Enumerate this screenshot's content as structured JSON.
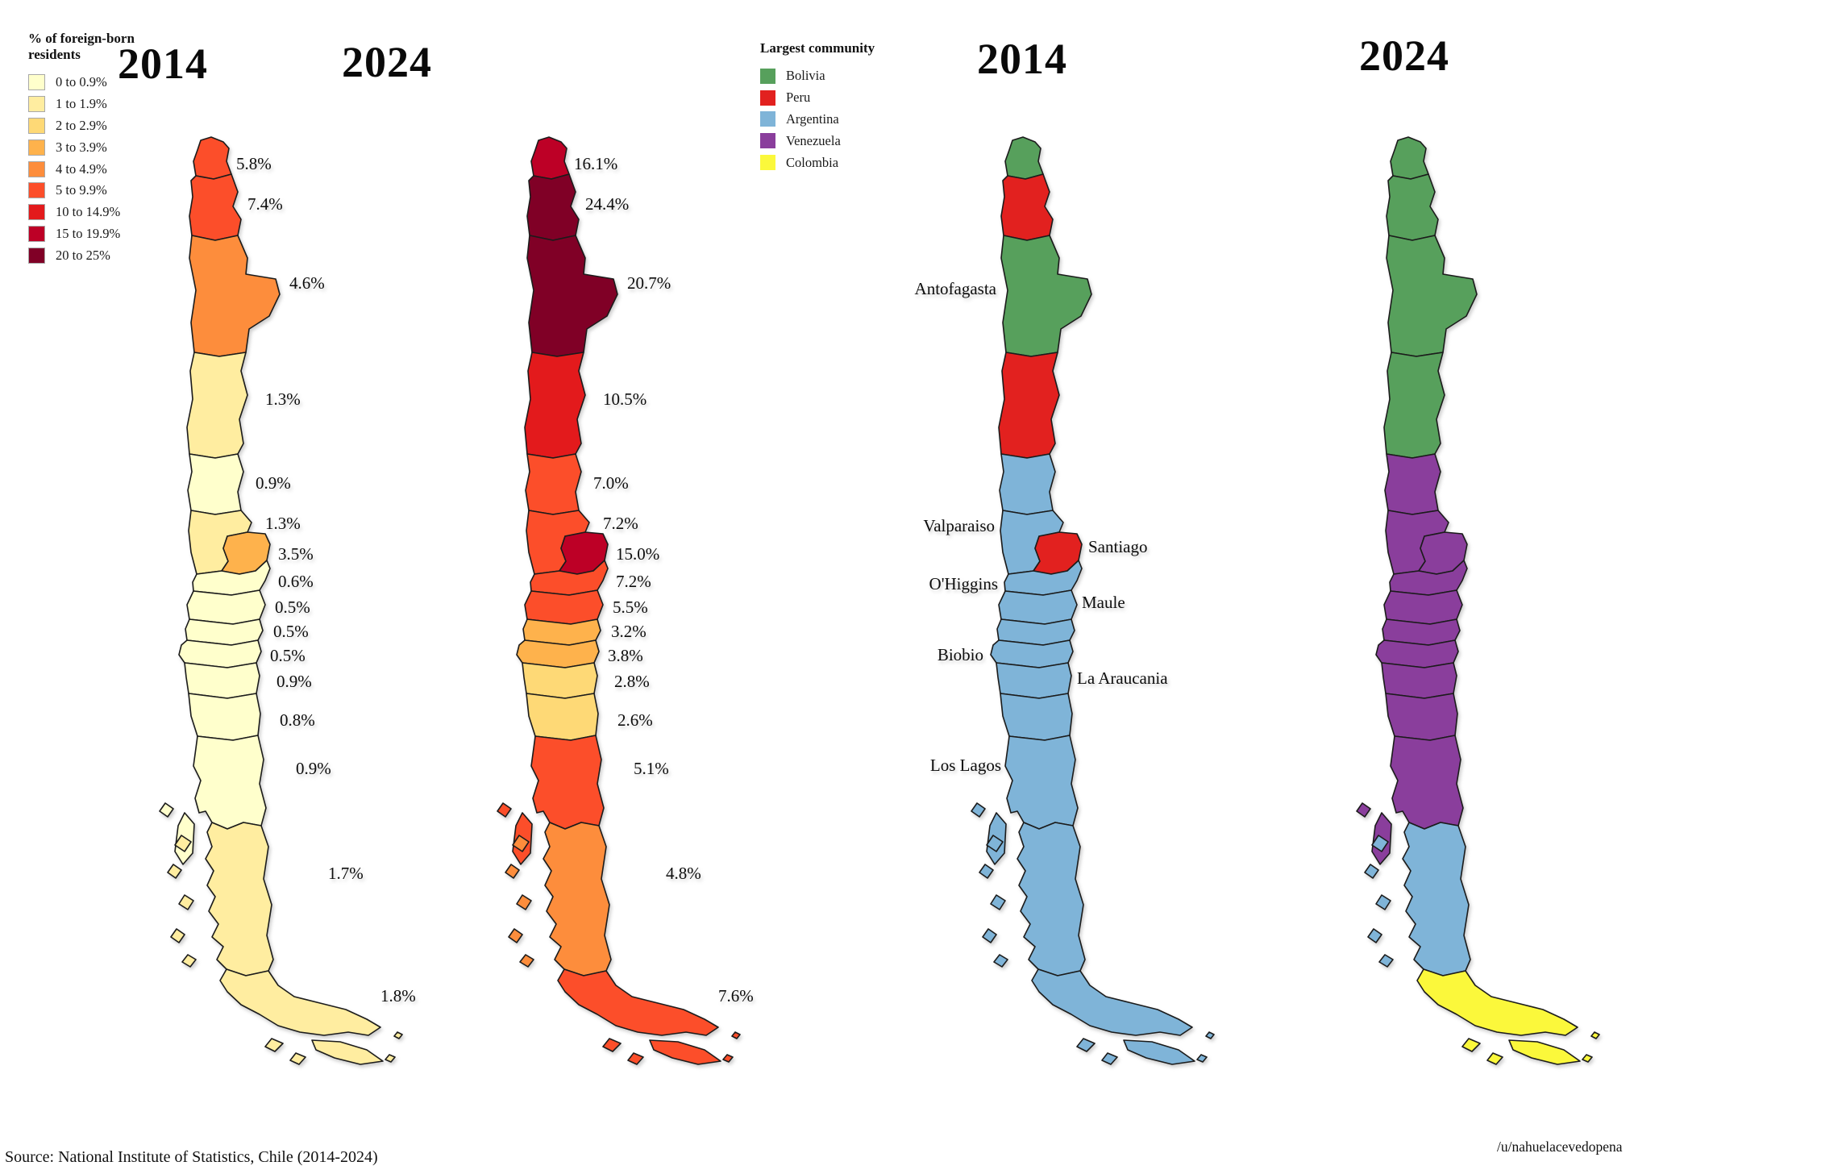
{
  "legend_percent": {
    "title_lines": [
      "% of foreign-born",
      "residents"
    ],
    "items": [
      {
        "label": "0 to 0.9%",
        "color": "#ffffcc"
      },
      {
        "label": "1 to 1.9%",
        "color": "#ffeda0"
      },
      {
        "label": "2 to 2.9%",
        "color": "#fed976"
      },
      {
        "label": "3 to 3.9%",
        "color": "#feb24c"
      },
      {
        "label": "4 to 4.9%",
        "color": "#fd8d3c"
      },
      {
        "label": "5 to 9.9%",
        "color": "#fc4e2a"
      },
      {
        "label": "10 to 14.9%",
        "color": "#e31a1c"
      },
      {
        "label": "15 to 19.9%",
        "color": "#bd0026"
      },
      {
        "label": "20 to 25%",
        "color": "#800026"
      }
    ]
  },
  "legend_community": {
    "title": "Largest community",
    "items": [
      {
        "label": "Bolivia",
        "color": "#57a05c"
      },
      {
        "label": "Peru",
        "color": "#e2211f"
      },
      {
        "label": "Argentina",
        "color": "#7fb4d8"
      },
      {
        "label": "Venezuela",
        "color": "#8a3e9c"
      },
      {
        "label": "Colombia",
        "color": "#fbf83b"
      }
    ]
  },
  "maps": [
    {
      "id": "percent-2014",
      "title": "2014",
      "kind": "percent",
      "regions": {
        "r01": {
          "label": "5.8%",
          "color": "#fc4e2a"
        },
        "r02": {
          "label": "7.4%",
          "color": "#fc4e2a"
        },
        "r03": {
          "label": "4.6%",
          "color": "#fd8d3c"
        },
        "r04": {
          "label": "1.3%",
          "color": "#ffeda0"
        },
        "r05": {
          "label": "0.9%",
          "color": "#ffffcc"
        },
        "r06": {
          "label": "1.3%",
          "color": "#ffeda0"
        },
        "r07": {
          "label": "3.5%",
          "color": "#feb24c"
        },
        "r08": {
          "label": "0.6%",
          "color": "#ffffcc"
        },
        "r09": {
          "label": "0.5%",
          "color": "#ffffcc"
        },
        "r10": {
          "label": "0.5%",
          "color": "#ffffcc"
        },
        "r11": {
          "label": "0.5%",
          "color": "#ffffcc"
        },
        "r12": {
          "label": "0.9%",
          "color": "#ffffcc"
        },
        "r13": {
          "label": "0.8%",
          "color": "#ffffcc"
        },
        "r14": {
          "label": "0.9%",
          "color": "#ffffcc"
        },
        "r15": {
          "label": "1.7%",
          "color": "#ffeda0"
        },
        "r16": {
          "label": "1.8%",
          "color": "#ffeda0"
        }
      }
    },
    {
      "id": "percent-2024",
      "title": "2024",
      "kind": "percent",
      "regions": {
        "r01": {
          "label": "16.1%",
          "color": "#bd0026"
        },
        "r02": {
          "label": "24.4%",
          "color": "#800026"
        },
        "r03": {
          "label": "20.7%",
          "color": "#800026"
        },
        "r04": {
          "label": "10.5%",
          "color": "#e31a1c"
        },
        "r05": {
          "label": "7.0%",
          "color": "#fc4e2a"
        },
        "r06": {
          "label": "7.2%",
          "color": "#fc4e2a"
        },
        "r07": {
          "label": "15.0%",
          "color": "#bd0026"
        },
        "r08": {
          "label": "7.2%",
          "color": "#fc4e2a"
        },
        "r09": {
          "label": "5.5%",
          "color": "#fc4e2a"
        },
        "r10": {
          "label": "3.2%",
          "color": "#feb24c"
        },
        "r11": {
          "label": "3.8%",
          "color": "#feb24c"
        },
        "r12": {
          "label": "2.8%",
          "color": "#fed976"
        },
        "r13": {
          "label": "2.6%",
          "color": "#fed976"
        },
        "r14": {
          "label": "5.1%",
          "color": "#fc4e2a"
        },
        "r15": {
          "label": "4.8%",
          "color": "#fd8d3c"
        },
        "r16": {
          "label": "7.6%",
          "color": "#fc4e2a"
        }
      }
    },
    {
      "id": "community-2014",
      "title": "2014",
      "kind": "community",
      "regions": {
        "r01": {
          "label": null,
          "color": "#57a05c"
        },
        "r02": {
          "label": null,
          "color": "#e2211f"
        },
        "r03": {
          "label": "Antofagasta",
          "color": "#57a05c"
        },
        "r04": {
          "label": null,
          "color": "#e2211f"
        },
        "r05": {
          "label": null,
          "color": "#7fb4d8"
        },
        "r06": {
          "label": "Valparaiso",
          "color": "#7fb4d8"
        },
        "r07": {
          "label": "Santiago",
          "color": "#e2211f"
        },
        "r08": {
          "label": "O'Higgins",
          "color": "#7fb4d8"
        },
        "r09": {
          "label": "Maule",
          "color": "#7fb4d8"
        },
        "r10": {
          "label": null,
          "color": "#7fb4d8"
        },
        "r11": {
          "label": "Biobio",
          "color": "#7fb4d8"
        },
        "r12": {
          "label": "La Araucania",
          "color": "#7fb4d8"
        },
        "r13": {
          "label": null,
          "color": "#7fb4d8"
        },
        "r14": {
          "label": "Los Lagos",
          "color": "#7fb4d8"
        },
        "r15": {
          "label": null,
          "color": "#7fb4d8"
        },
        "r16": {
          "label": null,
          "color": "#7fb4d8"
        }
      }
    },
    {
      "id": "community-2024",
      "title": "2024",
      "kind": "community",
      "regions": {
        "r01": {
          "label": null,
          "color": "#57a05c"
        },
        "r02": {
          "label": null,
          "color": "#57a05c"
        },
        "r03": {
          "label": null,
          "color": "#57a05c"
        },
        "r04": {
          "label": null,
          "color": "#57a05c"
        },
        "r05": {
          "label": null,
          "color": "#8a3e9c"
        },
        "r06": {
          "label": null,
          "color": "#8a3e9c"
        },
        "r07": {
          "label": null,
          "color": "#8a3e9c"
        },
        "r08": {
          "label": null,
          "color": "#8a3e9c"
        },
        "r09": {
          "label": null,
          "color": "#8a3e9c"
        },
        "r10": {
          "label": null,
          "color": "#8a3e9c"
        },
        "r11": {
          "label": null,
          "color": "#8a3e9c"
        },
        "r12": {
          "label": null,
          "color": "#8a3e9c"
        },
        "r13": {
          "label": null,
          "color": "#8a3e9c"
        },
        "r14": {
          "label": null,
          "color": "#8a3e9c"
        },
        "r15": {
          "label": null,
          "color": "#7fb4d8"
        },
        "r16": {
          "label": null,
          "color": "#fbf83b"
        }
      }
    }
  ],
  "source": "Source: National Institute of Statistics, Chile (2014-2024)",
  "credit": "/u/nahuelacevedopena",
  "chart_data": {
    "type": "table",
    "columns": [
      "region",
      "pct_foreign_born_2014",
      "pct_foreign_born_2024",
      "largest_community_2014",
      "largest_community_2024"
    ],
    "rows": [
      [
        "r01",
        5.8,
        16.1,
        "Bolivia",
        "Bolivia"
      ],
      [
        "r02",
        7.4,
        24.4,
        "Peru",
        "Bolivia"
      ],
      [
        "r03 Antofagasta",
        4.6,
        20.7,
        "Bolivia",
        "Bolivia"
      ],
      [
        "r04",
        1.3,
        10.5,
        "Peru",
        "Bolivia"
      ],
      [
        "r05",
        0.9,
        7.0,
        "Argentina",
        "Venezuela"
      ],
      [
        "r06 Valparaiso",
        1.3,
        7.2,
        "Argentina",
        "Venezuela"
      ],
      [
        "r07 Santiago",
        3.5,
        15.0,
        "Peru",
        "Venezuela"
      ],
      [
        "r08 O'Higgins",
        0.6,
        7.2,
        "Argentina",
        "Venezuela"
      ],
      [
        "r09 Maule",
        0.5,
        5.5,
        "Argentina",
        "Venezuela"
      ],
      [
        "r10",
        0.5,
        3.2,
        "Argentina",
        "Venezuela"
      ],
      [
        "r11 Biobio",
        0.5,
        3.8,
        "Argentina",
        "Venezuela"
      ],
      [
        "r12 La Araucania",
        0.9,
        2.8,
        "Argentina",
        "Venezuela"
      ],
      [
        "r13",
        0.8,
        2.6,
        "Argentina",
        "Venezuela"
      ],
      [
        "r14 Los Lagos",
        0.9,
        5.1,
        "Argentina",
        "Venezuela"
      ],
      [
        "r15",
        1.7,
        4.8,
        "Argentina",
        "Argentina"
      ],
      [
        "r16",
        1.8,
        7.6,
        "Argentina",
        "Colombia"
      ]
    ]
  }
}
